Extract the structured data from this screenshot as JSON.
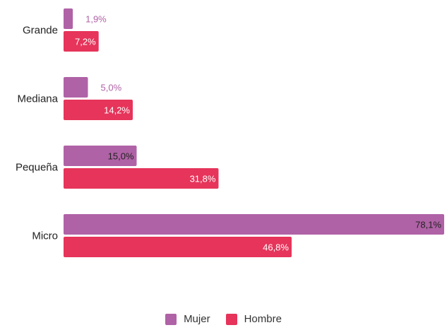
{
  "chart_data": {
    "type": "bar",
    "orientation": "horizontal",
    "categories": [
      "Grande",
      "Mediana",
      "Pequeña",
      "Micro"
    ],
    "series": [
      {
        "name": "Mujer",
        "color": "#b062a6",
        "values": [
          1.9,
          5.0,
          15.0,
          78.1
        ],
        "labels": [
          "1,9%",
          "5,0%",
          "15,0%",
          "78,1%"
        ]
      },
      {
        "name": "Hombre",
        "color": "#e6345a",
        "values": [
          7.2,
          14.2,
          31.8,
          46.8
        ],
        "labels": [
          "7,2%",
          "14,2%",
          "31,8%",
          "46,8%"
        ]
      }
    ],
    "xlim": [
      0,
      78.1
    ],
    "grid": false,
    "legend_position": "bottom-center"
  }
}
